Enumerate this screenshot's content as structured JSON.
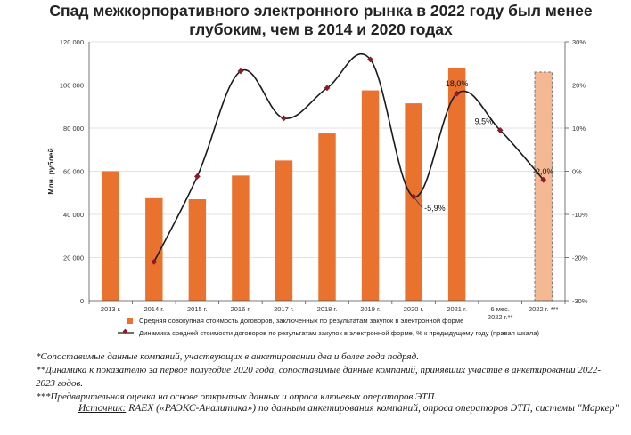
{
  "chart_data": {
    "type": "bar+line",
    "title": "Спад межкорпоративного электронного рынка в 2022 году был менее глубоким, чем в 2014 и 2020 годах",
    "ylabel": "Млн. рублей",
    "categories": [
      "2013 г.",
      "2014 г.",
      "2015 г.",
      "2016 г.",
      "2017 г.",
      "2018 г.",
      "2019 г.",
      "2020 г.",
      "2021 г.",
      "6 мес. 2022 г.**",
      "2022 г. ***"
    ],
    "bar_series": {
      "name": "Средняя совокупная стоимость договоров, заключенных по результатам закупок в электронной форме",
      "values": [
        60000,
        47500,
        47000,
        58000,
        65000,
        77500,
        97500,
        91500,
        108000,
        null,
        106000
      ],
      "estimate_index": 10,
      "color": "#e8722e",
      "estimate_color": "#f4b892"
    },
    "line_series": {
      "name": "Динамика средней стоимости договоров по результатам закупок в электронной форме, % к предыдущему году (правая шкала)",
      "values": [
        null,
        -21,
        -1.2,
        23.2,
        12.3,
        19.3,
        25.9,
        -5.9,
        18.0,
        9.5,
        -2.0
      ],
      "color": "#1a1a1a",
      "marker_color": "#8b1a2b"
    },
    "data_labels": [
      {
        "index": 7,
        "text": "-5,9%"
      },
      {
        "index": 8,
        "text": "18,0%"
      },
      {
        "index": 9,
        "text": "9,5%"
      },
      {
        "index": 10,
        "text": "-2,0%"
      }
    ],
    "y_left": {
      "min": 0,
      "max": 120000,
      "ticks": [
        "0",
        "20 000",
        "40 000",
        "60 000",
        "80 000",
        "100 000",
        "120 000"
      ]
    },
    "y_right": {
      "min": -30,
      "max": 30,
      "ticks": [
        "-30%",
        "-20%",
        "-10%",
        "0%",
        "10%",
        "20%",
        "30%"
      ]
    },
    "legend": "bottom"
  },
  "notes": [
    "*Сопоставимые данные компаний, участвующих в анкетировании два и более года подряд.",
    "**Динамика к показателю за первое полугодие 2020 года, сопоставимые данные компаний, принявших участие в анкетировании 2022-2023 годов.",
    "***Предварительная оценка на основе открытых данных и опроса ключевых операторов ЭТП."
  ],
  "source": {
    "label": "Источник:",
    "text": " RAEX («РАЭКС-Аналитика») по данным анкетирования компаний, опроса операторов ЭТП, системы \"Маркер\""
  }
}
